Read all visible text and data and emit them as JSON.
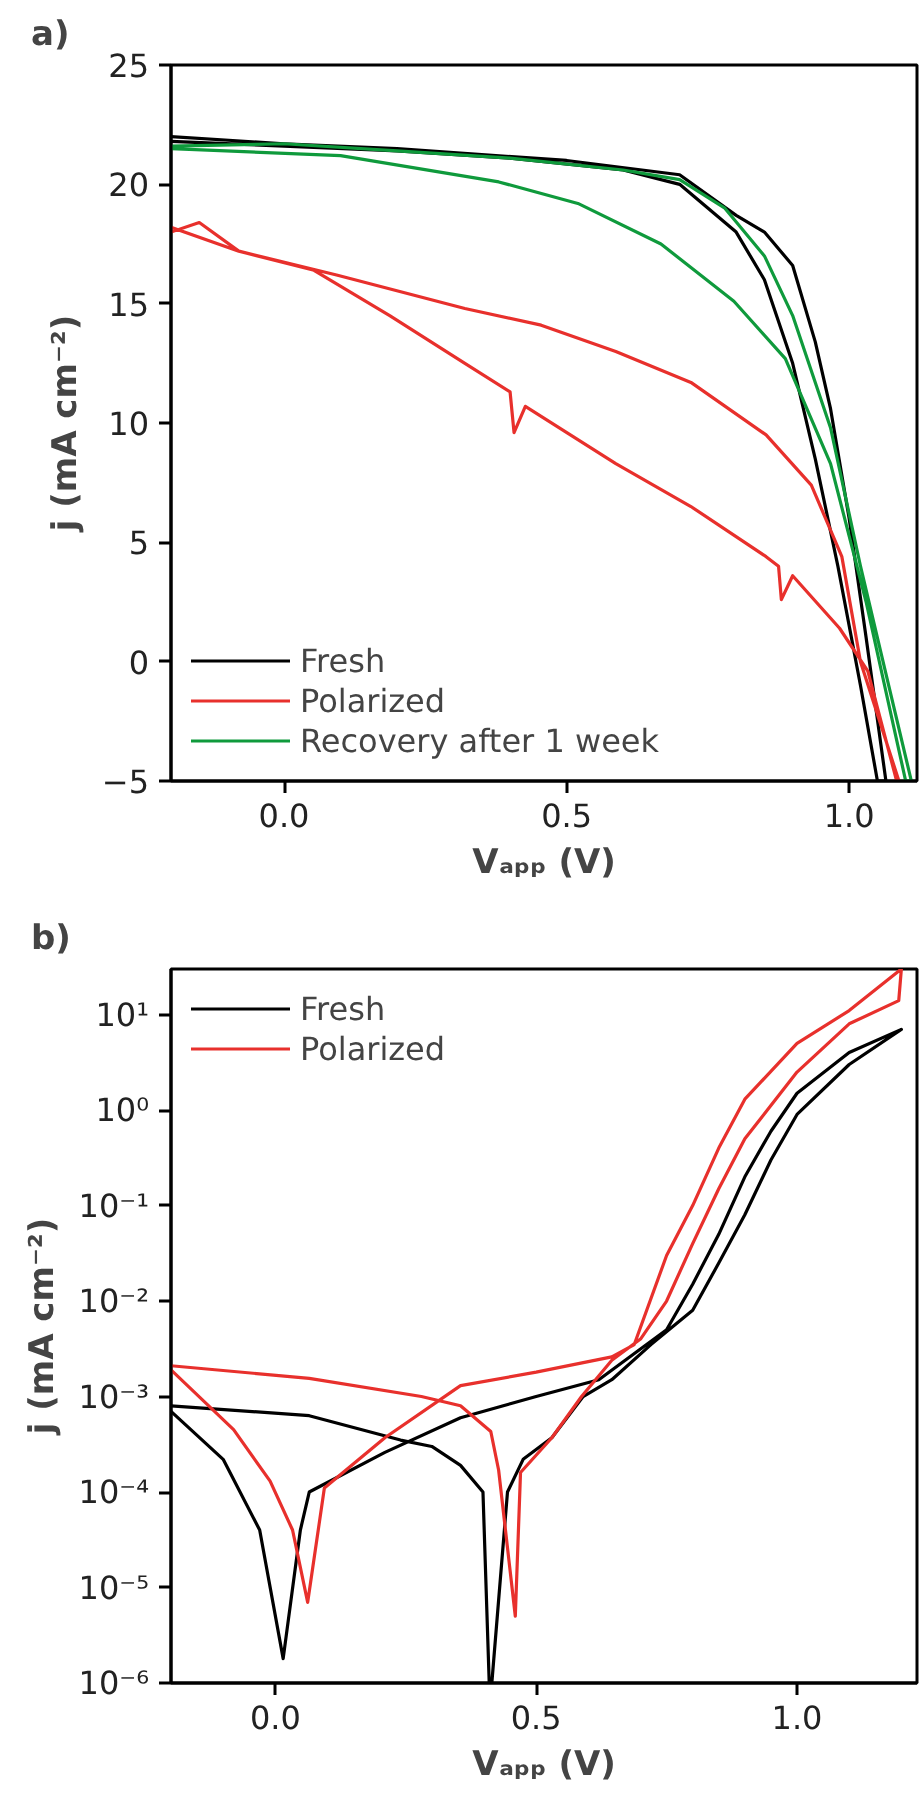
{
  "chart_data": [
    {
      "type": "line",
      "title": "a)",
      "xlabel": "Vₐₚₚ (V)",
      "ylabel": "j (mA cm⁻²)",
      "xlim": [
        -0.2,
        1.12
      ],
      "ylim": [
        -5,
        25
      ],
      "xticks": [
        {
          "value": 0,
          "label": "0.0"
        },
        {
          "value": 0.5,
          "label": "0.5"
        },
        {
          "value": 1,
          "label": "1.0"
        }
      ],
      "yticks": [
        -5,
        0,
        5,
        10,
        15,
        20,
        25
      ],
      "grid": false,
      "legend": "bottom left",
      "marker": "none",
      "line_style": "solid",
      "series": [
        {
          "name": "Fresh",
          "color": "#000000",
          "x": [
            -0.2,
            0,
            0.2,
            0.4,
            0.6,
            0.7,
            0.8,
            0.85,
            0.9,
            0.94,
            0.98,
            1.02,
            1.05,
            1.065,
            1.03,
            1.0,
            0.967,
            0.94,
            0.9,
            0.85,
            0.8,
            0.7,
            0.5,
            0.2,
            0,
            -0.2
          ],
          "values": [
            21.8,
            21.6,
            21.4,
            21.1,
            20.6,
            20.0,
            18.0,
            16.0,
            12.5,
            8.5,
            4.0,
            -1.0,
            -5,
            -5,
            1.0,
            6.0,
            10.6,
            13.4,
            16.6,
            18.0,
            18.7,
            20.4,
            21.0,
            21.5,
            21.7,
            22.0
          ]
        },
        {
          "name": "Polarized",
          "color": "#e8302c",
          "x": [
            -0.2,
            -0.08,
            0.053,
            0.187,
            0.32,
            0.4,
            0.407,
            0.427,
            0.587,
            0.72,
            0.853,
            0.875,
            0.88,
            0.9,
            0.983,
            1.033,
            1.084,
            1.088,
            1.02,
            0.987,
            0.933,
            0.853,
            0.72,
            0.587,
            0.455,
            0.32,
            0.093,
            -0.08,
            -0.15,
            -0.2
          ],
          "values": [
            18.2,
            17.2,
            16.4,
            14.5,
            12.5,
            11.3,
            9.6,
            10.7,
            8.3,
            6.5,
            4.4,
            4.0,
            2.6,
            3.6,
            1.4,
            -0.4,
            -5,
            -5,
            0,
            4.4,
            7.4,
            9.5,
            11.7,
            13.0,
            14.1,
            14.8,
            16.2,
            17.2,
            18.4,
            18.0
          ]
        },
        {
          "name": "Recovery after 1 week",
          "color": "#0f9a3c",
          "x": [
            -0.2,
            0.1,
            0.38,
            0.52,
            0.667,
            0.796,
            0.887,
            0.967,
            1.03,
            1.1,
            1.11,
            1.07,
            1.02,
            0.967,
            0.9,
            0.85,
            0.78,
            0.7,
            0.6,
            0.4,
            0.2,
            0,
            -0.2
          ],
          "values": [
            21.5,
            21.2,
            20.1,
            19.2,
            17.5,
            15.1,
            12.7,
            8.3,
            2.5,
            -5,
            -5,
            -1,
            4,
            9.8,
            14.5,
            17.0,
            19.0,
            20.2,
            20.6,
            21.1,
            21.4,
            21.7,
            21.6
          ]
        }
      ]
    },
    {
      "type": "line",
      "title": "b)",
      "xlabel": "Vₐₚₚ (V)",
      "ylabel": "j (mA cm⁻²)",
      "log": "y",
      "xlim": [
        -0.2,
        1.23
      ],
      "ylim": [
        1e-06,
        30
      ],
      "xticks": [
        {
          "value": 0,
          "label": "0.0"
        },
        {
          "value": 0.5,
          "label": "0.5"
        },
        {
          "value": 1,
          "label": "1.0"
        }
      ],
      "yticks": [
        {
          "value": 1e-06,
          "label": "10⁻⁶"
        },
        {
          "value": 1e-05,
          "label": "10⁻⁵"
        },
        {
          "value": 0.0001,
          "label": "10⁻⁴"
        },
        {
          "value": 0.001,
          "label": "10⁻³"
        },
        {
          "value": 0.01,
          "label": "10⁻²"
        },
        {
          "value": 0.1,
          "label": "10⁻¹"
        },
        {
          "value": 1,
          "label": "10⁰"
        },
        {
          "value": 10,
          "label": "10¹"
        }
      ],
      "grid": false,
      "legend": "top left",
      "marker": "none",
      "line_style": "solid",
      "series": [
        {
          "name": "Fresh",
          "color": "#000000",
          "x": [
            -0.2,
            0.065,
            0.24,
            0.3,
            0.355,
            0.398,
            0.41,
            0.415,
            0.445,
            0.475,
            0.53,
            0.59,
            0.645,
            0.72,
            0.8,
            0.85,
            0.9,
            0.95,
            1.0,
            1.1,
            1.2,
            1.1,
            1.0,
            0.95,
            0.9,
            0.85,
            0.8,
            0.75,
            0.62,
            0.5,
            0.355,
            0.21,
            0.065,
            0.048,
            0.015,
            -0.03,
            -0.1,
            -0.2
          ],
          "values": [
            0.0008,
            0.00063,
            0.00035,
            0.0003,
            0.00019,
            0.0001,
            1e-06,
            1e-06,
            0.0001,
            0.00022,
            0.00037,
            0.001,
            0.0015,
            0.0035,
            0.008,
            0.025,
            0.08,
            0.3,
            0.9,
            3,
            7,
            4,
            1.5,
            0.6,
            0.2,
            0.05,
            0.015,
            0.005,
            0.0015,
            0.001,
            0.0006,
            0.00026,
            0.0001,
            4e-05,
            1.8e-06,
            4e-05,
            0.00022,
            0.0007
          ]
        },
        {
          "name": "Polarized",
          "color": "#e8302c",
          "x": [
            -0.2,
            0.065,
            0.28,
            0.355,
            0.413,
            0.428,
            0.46,
            0.47,
            0.53,
            0.587,
            0.645,
            0.7,
            0.75,
            0.8,
            0.85,
            0.9,
            1.0,
            1.1,
            1.195,
            1.2,
            1.1,
            1.0,
            0.9,
            0.85,
            0.8,
            0.75,
            0.688,
            0.645,
            0.5,
            0.355,
            0.21,
            0.094,
            0.062,
            0.033,
            -0.01,
            -0.08,
            -0.2
          ],
          "values": [
            0.0021,
            0.00155,
            0.001,
            0.0008,
            0.00043,
            0.00017,
            5e-06,
            0.00016,
            0.00037,
            0.001,
            0.0024,
            0.004,
            0.01,
            0.04,
            0.15,
            0.5,
            2.5,
            8,
            14,
            30,
            11,
            5,
            1.3,
            0.4,
            0.1,
            0.03,
            0.0035,
            0.0026,
            0.0018,
            0.0013,
            0.00037,
            0.00011,
            7e-06,
            4e-05,
            0.00013,
            0.00045,
            0.0019
          ]
        }
      ]
    }
  ]
}
